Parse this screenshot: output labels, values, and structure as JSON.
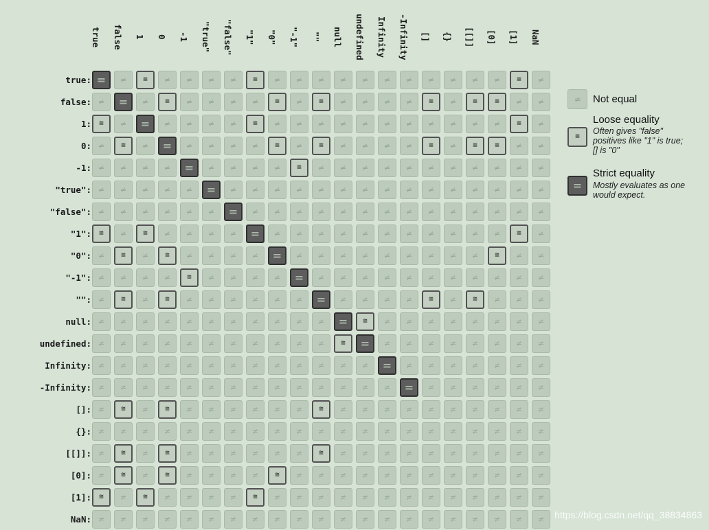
{
  "operands": [
    "true",
    "false",
    "1",
    "0",
    "-1",
    "\"true\"",
    "\"false\"",
    "\"1\"",
    "\"0\"",
    "\"-1\"",
    "\"\"",
    "null",
    "undefined",
    "Infinity",
    "-Infinity",
    "[]",
    "{}",
    "[[]]",
    "[0]",
    "[1]",
    "NaN"
  ],
  "symbols": {
    "not_equal": "≠",
    "loose": "≅",
    "strict": "="
  },
  "colors": {
    "background": "#d6e3d5",
    "not_equal_fill": "#bccbbb",
    "loose_border": "#525252",
    "strict_fill": "#5d5d5d"
  },
  "matrix": [
    "SNLNNNNLNNNNNNNNNNNLN",
    "NSNLNNNNLNLNNNNLNLLNN",
    "LNSNNNNLNNNNNNNNNNNLN",
    "NLNSNNNNLNLNNNNLNLLNN",
    "NNNNSNNNNLNNNNNNNNNNN",
    "NNNNNSNNNNNNNNNNNNNNN",
    "NNNNNNSNNNNNNNNNNNNNN",
    "LNLNNNNSNNNNNNNNNNNLN",
    "NLNLNNNNSNNNNNNNNNLNN",
    "NNNNLNNNNSNNNNNNNNNNN",
    "NLNLNNNNNNSNNNNLNLNNN",
    "NNNNNNNNNNNSLNNNNNNNN",
    "NNNNNNNNNNNLSNNNNNNNN",
    "NNNNNNNNNNNNNSNNNNNNN",
    "NNNNNNNNNNNNNNSNNNNNN",
    "NLNLNNNNNNLNNNNNNNNNN",
    "NNNNNNNNNNNNNNNNNNNNN",
    "NLNLNNNNNNLNNNNNNNNNN",
    "NLNLNNNNLNNNNNNNNNNNN",
    "LNLNNNNLNNNNNNNNNNNNN",
    "NNNNNNNNNNNNNNNNNNNNN"
  ],
  "legend": {
    "not_equal": {
      "title": "Not equal"
    },
    "loose": {
      "title": "Loose equality",
      "desc": "Often gives \"false\" positives like \"1\" is true; [] is \"0\""
    },
    "strict": {
      "title": "Strict equality",
      "desc": "Mostly evaluates as one would expect."
    }
  },
  "watermark": "https://blog.csdn.net/qq_38834863"
}
